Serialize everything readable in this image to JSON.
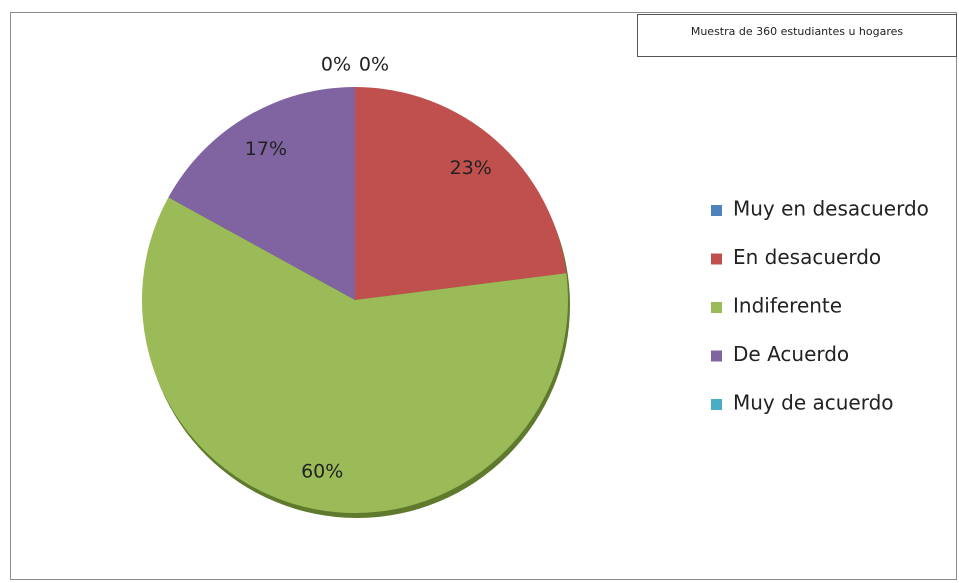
{
  "chart_data": {
    "type": "pie",
    "annotation": "Muestra de 360 estudiantes u hogares",
    "categories": [
      "Muy en desacuerdo",
      "En desacuerdo",
      "Indiferente",
      "De  Acuerdo",
      "Muy de acuerdo"
    ],
    "values": [
      0,
      23,
      60,
      17,
      0
    ],
    "value_labels": [
      "0%",
      "23%",
      "60%",
      "17%",
      "0%"
    ],
    "colors": [
      "#4f81bd",
      "#c0504d",
      "#9bbb59",
      "#8064a2",
      "#4bacc6"
    ],
    "legend": "right"
  }
}
